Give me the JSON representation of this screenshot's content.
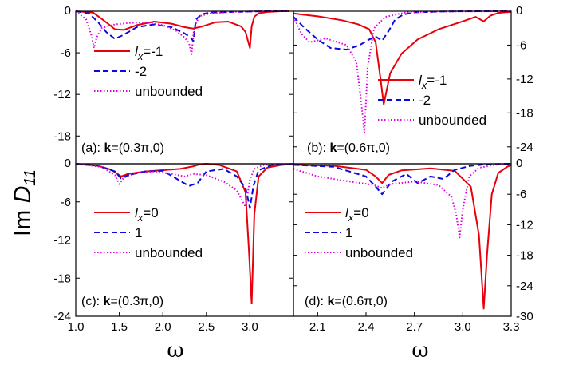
{
  "figure": {
    "ylabel_main": "Im ",
    "ylabel_var": "D",
    "ylabel_sub": "11",
    "xlabel": "ω"
  },
  "chart_data": [
    {
      "id": "a",
      "type": "line",
      "panel_label_prefix": "(a): ",
      "panel_label_bold": "k",
      "panel_label_suffix": "=(0.3π,0)",
      "xlim": [
        1.0,
        3.5
      ],
      "ylim": [
        -22,
        0
      ],
      "y_ticks": [
        0,
        -6,
        -12,
        -18
      ],
      "y_tick_labels": [
        "0",
        "-6",
        "-12",
        "-18"
      ],
      "y_axis_side": "left",
      "legend": {
        "var": "l",
        "sub": "x",
        "placement": "upper-left"
      },
      "series": [
        {
          "name": "=-1",
          "color": "#e8000b",
          "dash": "solid",
          "x": [
            1.0,
            1.2,
            1.35,
            1.45,
            1.55,
            1.7,
            1.9,
            2.1,
            2.25,
            2.35,
            2.45,
            2.6,
            2.75,
            2.9,
            2.95,
            3.0,
            3.02,
            3.05,
            3.1,
            3.2,
            3.35,
            3.45
          ],
          "y": [
            0,
            -0.2,
            -1.6,
            -2.6,
            -2.7,
            -2.0,
            -1.5,
            -1.8,
            -2.3,
            -2.5,
            -2.2,
            -1.6,
            -1.5,
            -2.2,
            -3.0,
            -5.3,
            -2.2,
            -0.8,
            -0.3,
            -0.1,
            0,
            0
          ]
        },
        {
          "name": "-2",
          "color": "#0a0adc",
          "dash": "dashed",
          "x": [
            1.0,
            1.15,
            1.25,
            1.35,
            1.45,
            1.55,
            1.7,
            1.9,
            2.1,
            2.25,
            2.32,
            2.35,
            2.38,
            2.45,
            2.55,
            2.8,
            3.0,
            3.2,
            3.45
          ],
          "y": [
            0,
            -0.3,
            -1.5,
            -3.0,
            -4.0,
            -3.4,
            -2.3,
            -1.9,
            -2.3,
            -3.2,
            -3.8,
            -4.3,
            -1.2,
            -0.4,
            -0.2,
            -0.1,
            -0.05,
            0,
            0
          ]
        },
        {
          "name": "unbounded",
          "color": "#e000e0",
          "dash": "dotted",
          "x": [
            1.0,
            1.12,
            1.18,
            1.21,
            1.24,
            1.3,
            1.45,
            1.6,
            1.8,
            2.0,
            2.15,
            2.25,
            2.3,
            2.33,
            2.36,
            2.42,
            2.55,
            2.8,
            3.1,
            3.45
          ],
          "y": [
            0,
            -1.2,
            -3.5,
            -5.3,
            -3.8,
            -2.4,
            -1.9,
            -1.7,
            -1.6,
            -2.0,
            -2.8,
            -3.8,
            -4.6,
            -6.2,
            -2.3,
            -0.7,
            -0.3,
            -0.1,
            0,
            0
          ]
        }
      ]
    },
    {
      "id": "b",
      "type": "line",
      "panel_label_prefix": "(b): ",
      "panel_label_bold": "k",
      "panel_label_suffix": "=(0.6π,0)",
      "xlim": [
        1.95,
        3.3
      ],
      "ylim": [
        -27,
        0
      ],
      "y_ticks": [
        0,
        -6,
        -12,
        -18,
        -24
      ],
      "y_tick_labels": [
        "0",
        "-6",
        "-12",
        "-18",
        "-24"
      ],
      "y_axis_side": "right",
      "legend": {
        "var": "l",
        "sub": "x",
        "placement": "right"
      },
      "series": [
        {
          "name": "=-1",
          "color": "#e8000b",
          "dash": "solid",
          "x": [
            1.95,
            2.1,
            2.25,
            2.35,
            2.42,
            2.46,
            2.49,
            2.51,
            2.55,
            2.62,
            2.72,
            2.85,
            3.0,
            3.08,
            3.13,
            3.17,
            3.22,
            3.3
          ],
          "y": [
            -0.4,
            -0.9,
            -1.6,
            -2.3,
            -3.2,
            -5.5,
            -12.0,
            -16.5,
            -11.0,
            -7.5,
            -5.0,
            -3.2,
            -1.8,
            -1.0,
            -1.8,
            -0.8,
            -0.3,
            -0.1
          ]
        },
        {
          "name": "-2",
          "color": "#0a0adc",
          "dash": "dashed",
          "x": [
            1.95,
            2.02,
            2.1,
            2.18,
            2.28,
            2.36,
            2.42,
            2.46,
            2.5,
            2.54,
            2.58,
            2.63,
            2.7,
            2.85,
            3.0,
            3.3
          ],
          "y": [
            -1.0,
            -3.0,
            -5.0,
            -6.5,
            -6.8,
            -6.0,
            -5.0,
            -4.5,
            -5.2,
            -3.5,
            -1.5,
            -0.6,
            -0.2,
            -0.05,
            0,
            0
          ]
        },
        {
          "name": "unbounded",
          "color": "#e000e0",
          "dash": "dotted",
          "x": [
            1.95,
            2.0,
            2.05,
            2.15,
            2.28,
            2.34,
            2.37,
            2.39,
            2.41,
            2.45,
            2.52,
            2.65,
            2.85,
            3.3
          ],
          "y": [
            -1.0,
            -4.0,
            -5.5,
            -4.8,
            -6.0,
            -9.0,
            -16.0,
            -21.5,
            -10.0,
            -3.0,
            -1.0,
            -0.2,
            -0.05,
            0
          ]
        }
      ]
    },
    {
      "id": "c",
      "type": "line",
      "panel_label_prefix": "(c): ",
      "panel_label_bold": "k",
      "panel_label_suffix": "=(0.3π,0)",
      "xlim": [
        1.0,
        3.5
      ],
      "ylim": [
        -24,
        0
      ],
      "y_ticks": [
        0,
        -6,
        -12,
        -18,
        -24
      ],
      "y_tick_labels": [
        "0",
        "-6",
        "-12",
        "-18",
        "-24"
      ],
      "y_axis_side": "left",
      "x_ticks": [
        1.0,
        1.5,
        2.0,
        2.5,
        3.0
      ],
      "x_tick_labels": [
        "1.0",
        "1.5",
        "2.0",
        "2.5",
        "3.0"
      ],
      "legend": {
        "var": "l",
        "sub": "x",
        "placement": "left"
      },
      "series": [
        {
          "name": "=0",
          "color": "#e8000b",
          "dash": "solid",
          "x": [
            1.0,
            1.25,
            1.4,
            1.48,
            1.52,
            1.6,
            1.8,
            2.0,
            2.2,
            2.35,
            2.42,
            2.5,
            2.65,
            2.85,
            2.95,
            2.99,
            3.02,
            3.05,
            3.1,
            3.2,
            3.35,
            3.5
          ],
          "y": [
            0,
            -0.3,
            -0.9,
            -1.6,
            -2.0,
            -1.6,
            -1.2,
            -1.0,
            -0.8,
            -0.4,
            -0.1,
            0,
            -0.2,
            -1.2,
            -4.5,
            -14.0,
            -22.0,
            -8.0,
            -2.0,
            -0.6,
            -0.2,
            0
          ]
        },
        {
          "name": "1",
          "color": "#0a0adc",
          "dash": "dashed",
          "x": [
            1.0,
            1.25,
            1.45,
            1.52,
            1.6,
            1.8,
            2.0,
            2.15,
            2.3,
            2.4,
            2.5,
            2.7,
            2.85,
            2.95,
            3.0,
            3.04,
            3.1,
            3.25,
            3.5
          ],
          "y": [
            0,
            -0.3,
            -1.2,
            -2.3,
            -1.8,
            -1.2,
            -1.1,
            -2.3,
            -3.5,
            -3.0,
            -1.2,
            -0.8,
            -2.0,
            -3.8,
            -7.0,
            -3.5,
            -1.0,
            -0.2,
            0
          ]
        },
        {
          "name": "unbounded",
          "color": "#e000e0",
          "dash": "dotted",
          "x": [
            1.0,
            1.3,
            1.45,
            1.5,
            1.55,
            1.7,
            1.9,
            2.1,
            2.25,
            2.35,
            2.5,
            2.7,
            2.85,
            2.9,
            2.95,
            3.0,
            3.05,
            3.15,
            3.3,
            3.5
          ],
          "y": [
            0,
            -0.5,
            -1.8,
            -3.2,
            -2.2,
            -1.4,
            -1.2,
            -1.6,
            -2.0,
            -1.6,
            -1.8,
            -2.8,
            -4.2,
            -5.5,
            -6.8,
            -2.5,
            -0.8,
            -0.2,
            -0.05,
            0
          ]
        }
      ]
    },
    {
      "id": "d",
      "type": "line",
      "panel_label_prefix": "(d): ",
      "panel_label_bold": "k",
      "panel_label_suffix": "=(0.6π,0)",
      "xlim": [
        1.95,
        3.3
      ],
      "ylim": [
        -30,
        0
      ],
      "y_ticks": [
        0,
        -6,
        -12,
        -18,
        -24,
        -30
      ],
      "y_tick_labels": [
        "0",
        "-6",
        "-12",
        "-18",
        "-24",
        "-30"
      ],
      "y_axis_side": "right",
      "x_ticks": [
        2.1,
        2.4,
        2.7,
        3.0,
        3.3
      ],
      "x_tick_labels": [
        "2.1",
        "2.4",
        "2.7",
        "3.0",
        "3.3"
      ],
      "legend": {
        "var": "l",
        "sub": "x",
        "placement": "left"
      },
      "series": [
        {
          "name": "=0",
          "color": "#e8000b",
          "dash": "solid",
          "x": [
            1.95,
            2.2,
            2.4,
            2.46,
            2.5,
            2.54,
            2.62,
            2.8,
            2.95,
            3.05,
            3.1,
            3.13,
            3.15,
            3.18,
            3.22,
            3.28,
            3.3
          ],
          "y": [
            -0.2,
            -0.4,
            -1.2,
            -2.5,
            -3.8,
            -2.2,
            -1.3,
            -0.9,
            -1.4,
            -4.5,
            -14.0,
            -28.5,
            -18.0,
            -6.0,
            -1.8,
            -0.5,
            -0.3
          ]
        },
        {
          "name": "1",
          "color": "#0a0adc",
          "dash": "dashed",
          "x": [
            1.95,
            2.2,
            2.4,
            2.46,
            2.5,
            2.56,
            2.65,
            2.72,
            2.8,
            2.88,
            2.95,
            3.05,
            3.15,
            3.3
          ],
          "y": [
            -0.2,
            -0.6,
            -2.5,
            -4.5,
            -6.0,
            -3.5,
            -2.0,
            -3.8,
            -2.5,
            -3.0,
            -1.2,
            -0.4,
            -0.1,
            0
          ]
        },
        {
          "name": "unbounded",
          "color": "#e000e0",
          "dash": "dotted",
          "x": [
            1.95,
            2.1,
            2.3,
            2.45,
            2.5,
            2.55,
            2.7,
            2.85,
            2.93,
            2.96,
            2.98,
            3.0,
            3.04,
            3.1,
            3.2,
            3.3
          ],
          "y": [
            -1.0,
            -2.5,
            -3.5,
            -4.2,
            -4.8,
            -4.0,
            -3.5,
            -4.2,
            -6.5,
            -10.0,
            -14.5,
            -9.0,
            -2.5,
            -0.8,
            -0.2,
            0
          ]
        }
      ]
    }
  ]
}
